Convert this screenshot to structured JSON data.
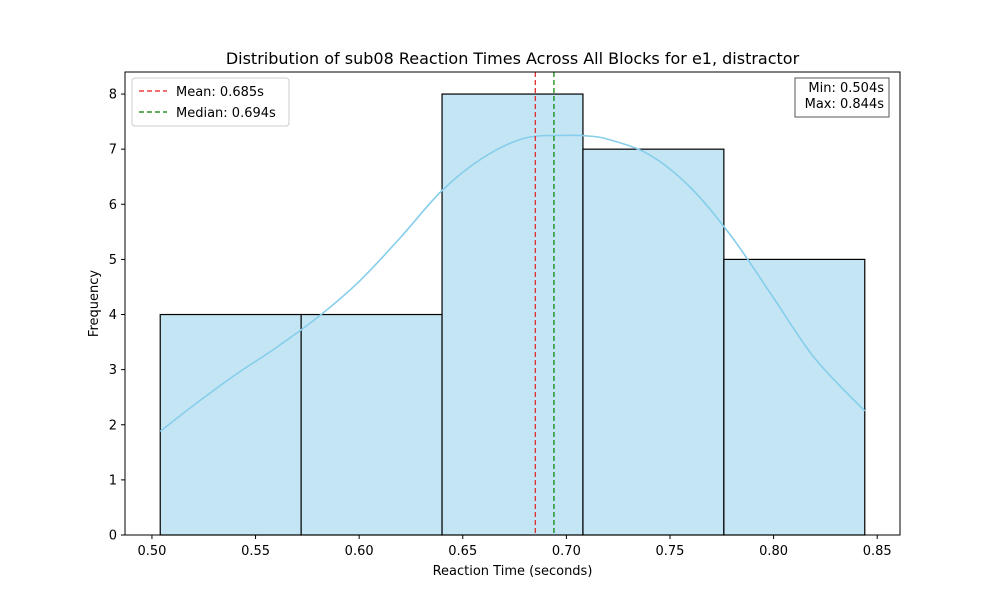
{
  "chart_data": {
    "type": "bar",
    "title": "Distribution of sub08 Reaction Times Across All Blocks for e1, distractor",
    "xlabel": "Reaction Time (seconds)",
    "ylabel": "Frequency",
    "xlim": [
      0.487,
      0.861
    ],
    "ylim": [
      0,
      8.4
    ],
    "xticks": [
      "0.50",
      "0.55",
      "0.60",
      "0.65",
      "0.70",
      "0.75",
      "0.80",
      "0.85"
    ],
    "yticks": [
      "0",
      "1",
      "2",
      "3",
      "4",
      "5",
      "6",
      "7",
      "8"
    ],
    "grid": false,
    "bins": [
      {
        "start": 0.504,
        "end": 0.572,
        "count": 4
      },
      {
        "start": 0.572,
        "end": 0.64,
        "count": 4
      },
      {
        "start": 0.64,
        "end": 0.708,
        "count": 8
      },
      {
        "start": 0.708,
        "end": 0.776,
        "count": 7
      },
      {
        "start": 0.776,
        "end": 0.844,
        "count": 5
      }
    ],
    "kde_curve": {
      "x": [
        0.504,
        0.52,
        0.54,
        0.56,
        0.58,
        0.6,
        0.62,
        0.64,
        0.66,
        0.68,
        0.7,
        0.71,
        0.72,
        0.74,
        0.76,
        0.78,
        0.8,
        0.82,
        0.844
      ],
      "y": [
        1.88,
        2.35,
        2.9,
        3.4,
        3.95,
        4.6,
        5.4,
        6.25,
        6.85,
        7.2,
        7.25,
        7.24,
        7.18,
        6.9,
        6.3,
        5.4,
        4.3,
        3.2,
        2.25
      ]
    },
    "vlines": [
      {
        "name": "Mean: 0.685s",
        "x": 0.685,
        "color": "#e41a1c",
        "style": "dashed"
      },
      {
        "name": "Median: 0.694s",
        "x": 0.694,
        "color": "#008000",
        "style": "dashed"
      }
    ],
    "legend_placement": "top-left",
    "stats_box": {
      "placement": "top-right",
      "lines": [
        "Min: 0.504s",
        "Max: 0.844s"
      ]
    },
    "colors": {
      "bar_fill": "#c3e5f4",
      "bar_edge": "#000000",
      "kde_line": "#87ceeb",
      "axes": "#000000"
    }
  }
}
